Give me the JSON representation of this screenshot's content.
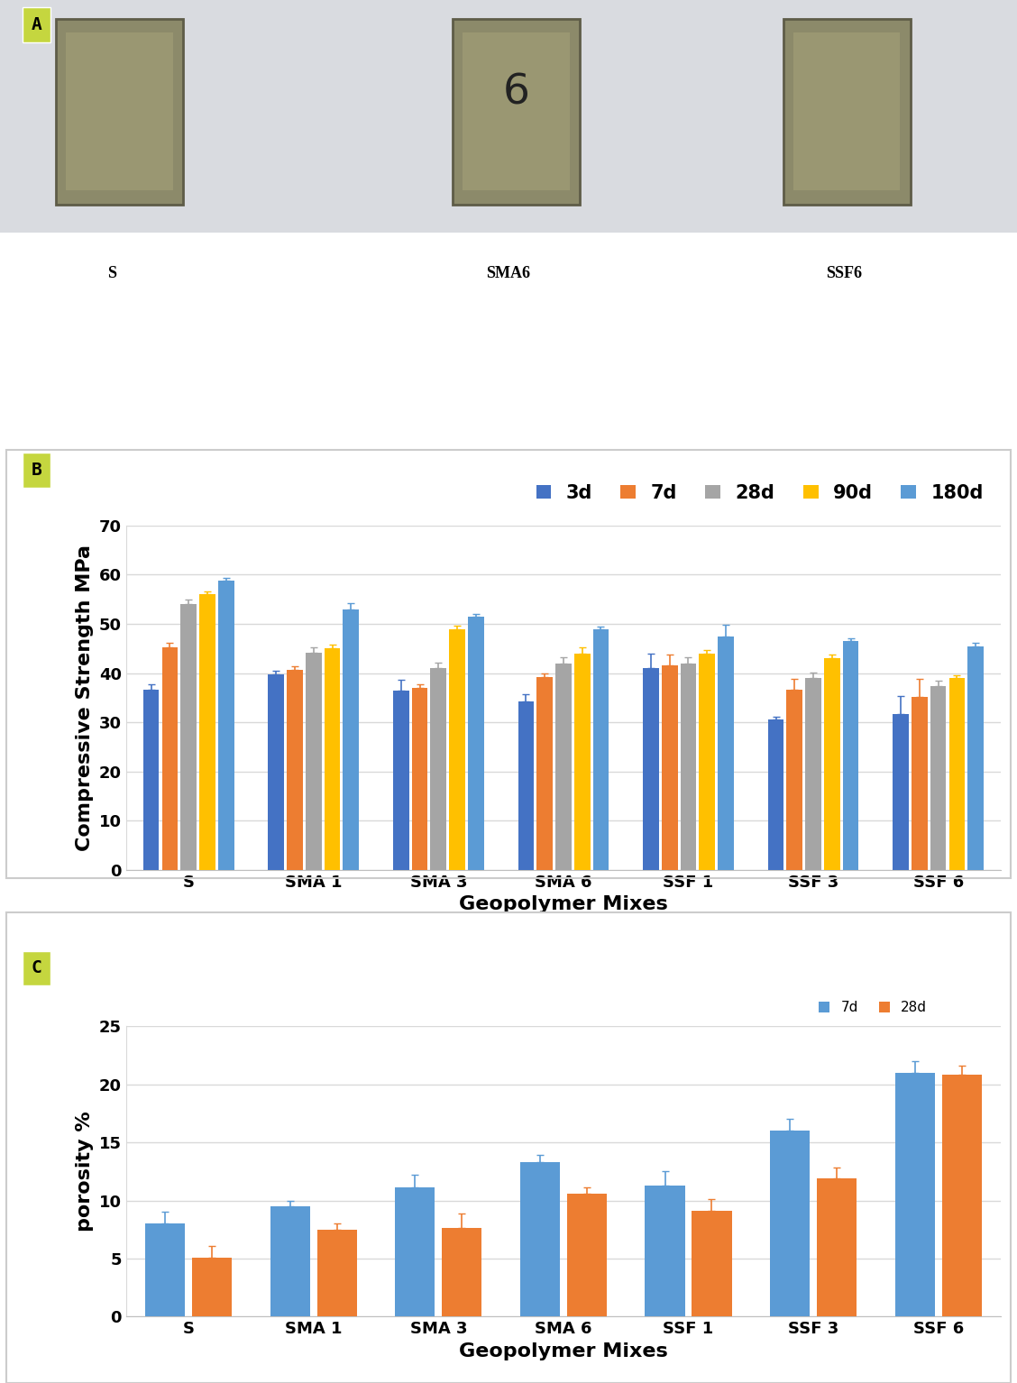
{
  "photo_panel": {
    "label": "A",
    "items": [
      {
        "caption": "S"
      },
      {
        "caption": "SMA6",
        "mark": "6"
      },
      {
        "caption": "SSF6"
      }
    ]
  },
  "chart_data": [
    {
      "type": "bar",
      "annotation": "B",
      "x_label": "Geopolymer Mixes",
      "y_label": "Compressive Strength MPa",
      "categories": [
        "S",
        "SMA 1",
        "SMA 3",
        "SMA 6",
        "SSF 1",
        "SSF 3",
        "SSF 6"
      ],
      "series": [
        {
          "name": "3d",
          "color": "#4472c4",
          "values": [
            36.7,
            39.7,
            36.4,
            34.2,
            41.0,
            30.5,
            31.7
          ],
          "errors": [
            1.0,
            0.7,
            2.2,
            1.5,
            3.0,
            0.6,
            3.7
          ]
        },
        {
          "name": "7d",
          "color": "#ed7d31",
          "values": [
            45.3,
            40.6,
            37.0,
            39.2,
            41.6,
            36.6,
            35.2
          ],
          "errors": [
            0.8,
            0.8,
            0.8,
            0.8,
            2.2,
            2.3,
            3.6
          ]
        },
        {
          "name": "28d",
          "color": "#a5a5a5",
          "values": [
            54.0,
            44.2,
            41.1,
            42.0,
            42.0,
            39.1,
            37.3
          ],
          "errors": [
            1.0,
            1.0,
            1.0,
            1.2,
            1.2,
            1.1,
            1.1
          ]
        },
        {
          "name": "90d",
          "color": "#ffc000",
          "values": [
            56.0,
            45.1,
            49.0,
            44.0,
            44.0,
            43.0,
            39.1
          ],
          "errors": [
            0.6,
            0.7,
            0.6,
            1.2,
            0.7,
            0.7,
            0.4
          ]
        },
        {
          "name": "180d",
          "color": "#5b9bd5",
          "values": [
            58.8,
            53.0,
            51.4,
            49.0,
            47.5,
            46.5,
            45.5
          ],
          "errors": [
            0.6,
            1.2,
            0.6,
            0.4,
            2.3,
            0.6,
            0.6
          ]
        }
      ],
      "ylim": [
        0,
        70
      ],
      "yticks": [
        0,
        10,
        20,
        30,
        40,
        50,
        60,
        70
      ],
      "grid": true,
      "legend": "upper right"
    },
    {
      "type": "bar",
      "annotation": "C",
      "x_label": "Geopolymer Mixes",
      "y_label": "porosity %",
      "categories": [
        "S",
        "SMA 1",
        "SMA 3",
        "SMA 6",
        "SSF 1",
        "SSF 3",
        "SSF 6"
      ],
      "series": [
        {
          "name": "7d",
          "color": "#5b9bd5",
          "values": [
            8.0,
            9.5,
            11.1,
            13.3,
            11.3,
            16.0,
            21.0
          ],
          "errors": [
            1.0,
            0.5,
            1.1,
            0.6,
            1.2,
            1.0,
            1.0
          ]
        },
        {
          "name": "28d",
          "color": "#ed7d31",
          "values": [
            5.1,
            7.5,
            7.6,
            10.6,
            9.1,
            11.9,
            20.8
          ],
          "errors": [
            1.0,
            0.5,
            1.3,
            0.5,
            1.0,
            0.9,
            0.8
          ]
        }
      ],
      "ylim": [
        0,
        25
      ],
      "yticks": [
        0,
        5,
        10,
        15,
        20,
        25
      ],
      "grid": true,
      "legend": "upper right"
    }
  ]
}
